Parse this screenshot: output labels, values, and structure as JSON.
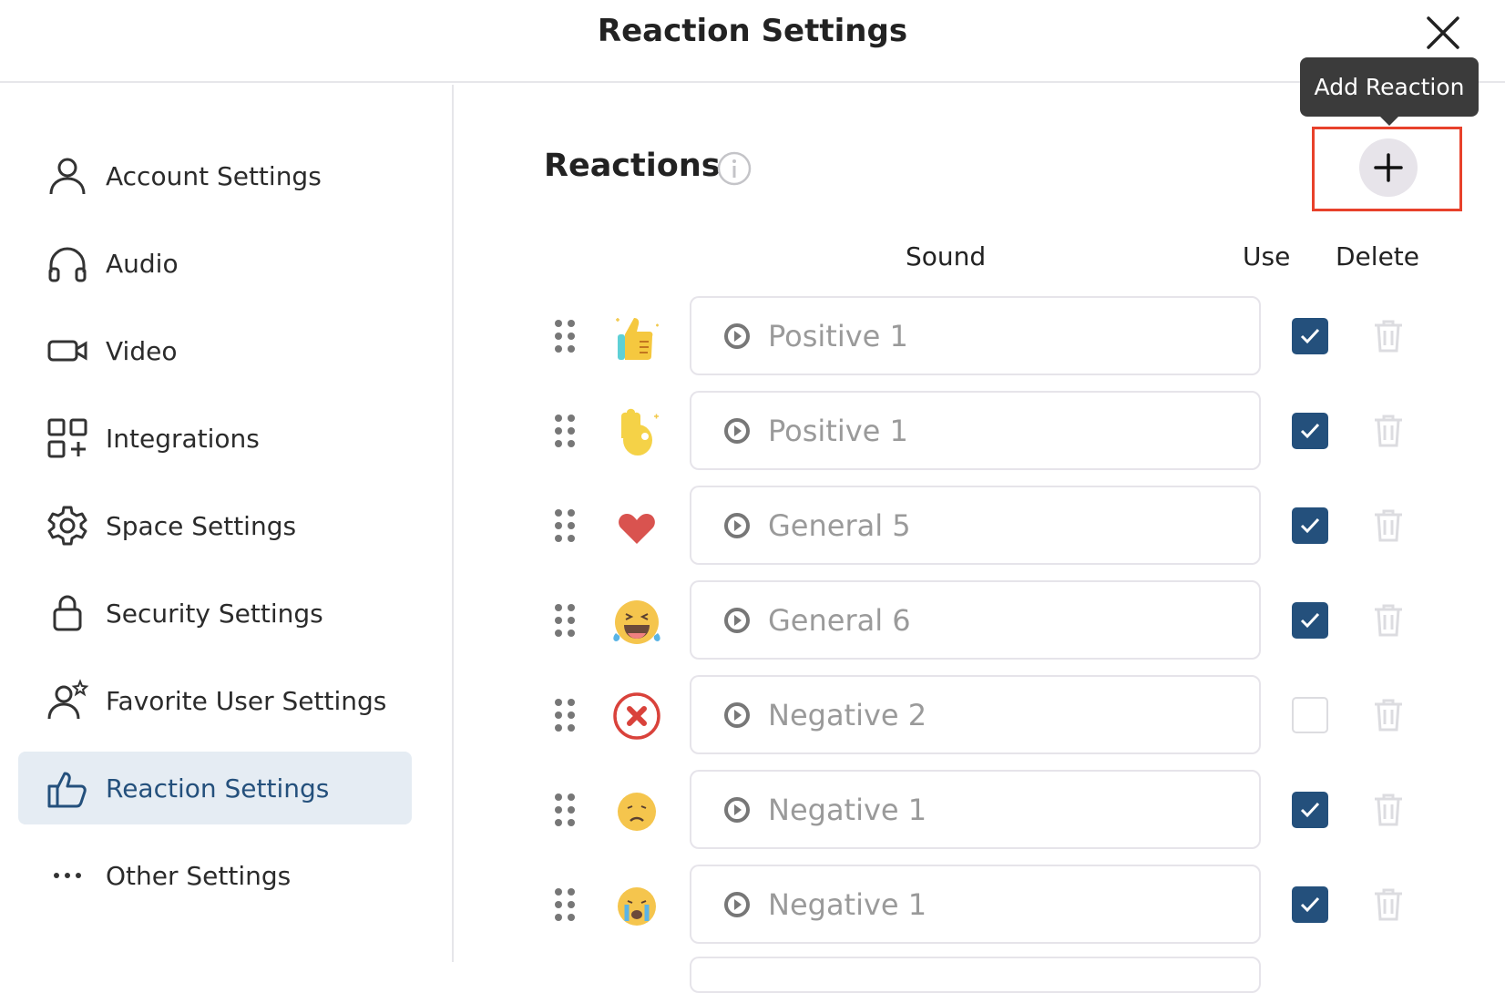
{
  "header": {
    "title": "Reaction Settings",
    "close_icon": "close-icon"
  },
  "sidebar": {
    "items": [
      {
        "label": "Account Settings",
        "icon": "user-icon"
      },
      {
        "label": "Audio",
        "icon": "headphones-icon"
      },
      {
        "label": "Video",
        "icon": "video-camera-icon"
      },
      {
        "label": "Integrations",
        "icon": "grid-plus-icon"
      },
      {
        "label": "Space Settings",
        "icon": "gear-icon"
      },
      {
        "label": "Security Settings",
        "icon": "lock-icon"
      },
      {
        "label": "Favorite User Settings",
        "icon": "user-star-icon"
      },
      {
        "label": "Reaction Settings",
        "icon": "thumbs-up-icon",
        "active": true
      },
      {
        "label": "Other Settings",
        "icon": "more-dots-icon"
      }
    ]
  },
  "main": {
    "heading": "Reactions",
    "add_tooltip": "Add Reaction",
    "columns": {
      "sound": "Sound",
      "use": "Use",
      "delete": "Delete"
    },
    "rows": [
      {
        "emoji": "thumbs-up",
        "sound": "Positive 1",
        "use": true
      },
      {
        "emoji": "ok-hand",
        "sound": "Positive 1",
        "use": true
      },
      {
        "emoji": "heart",
        "sound": "General 5",
        "use": true
      },
      {
        "emoji": "laughing-tears",
        "sound": "General 6",
        "use": true
      },
      {
        "emoji": "red-x",
        "sound": "Negative 2",
        "use": false
      },
      {
        "emoji": "sad-face",
        "sound": "Negative 1",
        "use": true
      },
      {
        "emoji": "crying-face",
        "sound": "Negative 1",
        "use": true
      }
    ]
  },
  "colors": {
    "accent": "#24507c",
    "highlight": "#e8412b",
    "active_bg": "#e5ecf3"
  }
}
